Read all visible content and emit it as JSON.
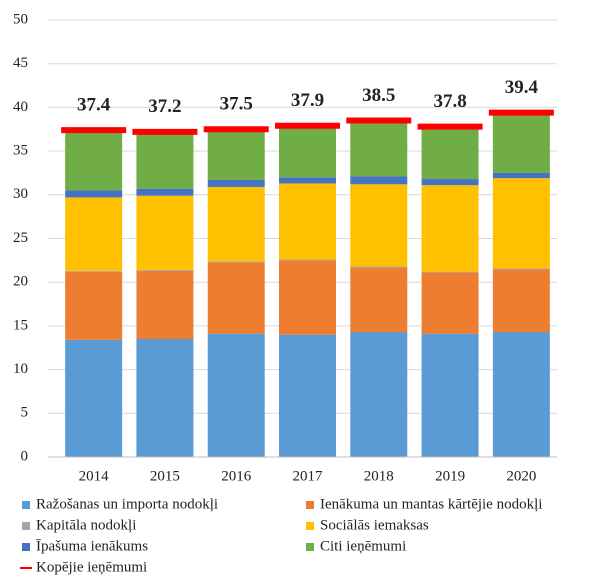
{
  "chart_data": {
    "type": "stacked_bar",
    "categories": [
      "2014",
      "2015",
      "2016",
      "2017",
      "2018",
      "2019",
      "2020"
    ],
    "series": [
      {
        "name": "Ražošanas un importa nodokļi",
        "color": "#5b9bd5",
        "values": [
          13.4,
          13.5,
          14.1,
          14.0,
          14.3,
          14.1,
          14.3
        ]
      },
      {
        "name": "Ienākuma un mantas kārtējie nodokļi",
        "color": "#ed7d31",
        "values": [
          7.8,
          7.8,
          8.2,
          8.5,
          7.4,
          7.0,
          7.2
        ]
      },
      {
        "name": "Kapitāla nodokļi",
        "color": "#a5a5a5",
        "values": [
          0.1,
          0.1,
          0.1,
          0.1,
          0.1,
          0.1,
          0.1
        ]
      },
      {
        "name": "Sociālās iemaksas",
        "color": "#ffc000",
        "values": [
          8.4,
          8.5,
          8.5,
          8.7,
          9.4,
          9.9,
          10.3
        ]
      },
      {
        "name": "Īpašuma ienākums",
        "color": "#4472c4",
        "values": [
          0.8,
          0.8,
          0.8,
          0.7,
          0.9,
          0.7,
          0.6
        ]
      },
      {
        "name": "Citi ieņēmumi",
        "color": "#70ad47",
        "values": [
          6.6,
          6.3,
          5.6,
          5.7,
          6.2,
          5.8,
          6.6
        ]
      },
      {
        "name": "Kopējie ieņēmumi",
        "color": "#ff0000",
        "type": "line",
        "values": [
          37.4,
          37.2,
          37.5,
          37.9,
          38.5,
          37.8,
          39.4
        ]
      }
    ],
    "ylim": [
      0,
      50
    ],
    "yticks": [
      0,
      5,
      10,
      15,
      20,
      25,
      30,
      35,
      40,
      45,
      50
    ],
    "grid": true
  }
}
